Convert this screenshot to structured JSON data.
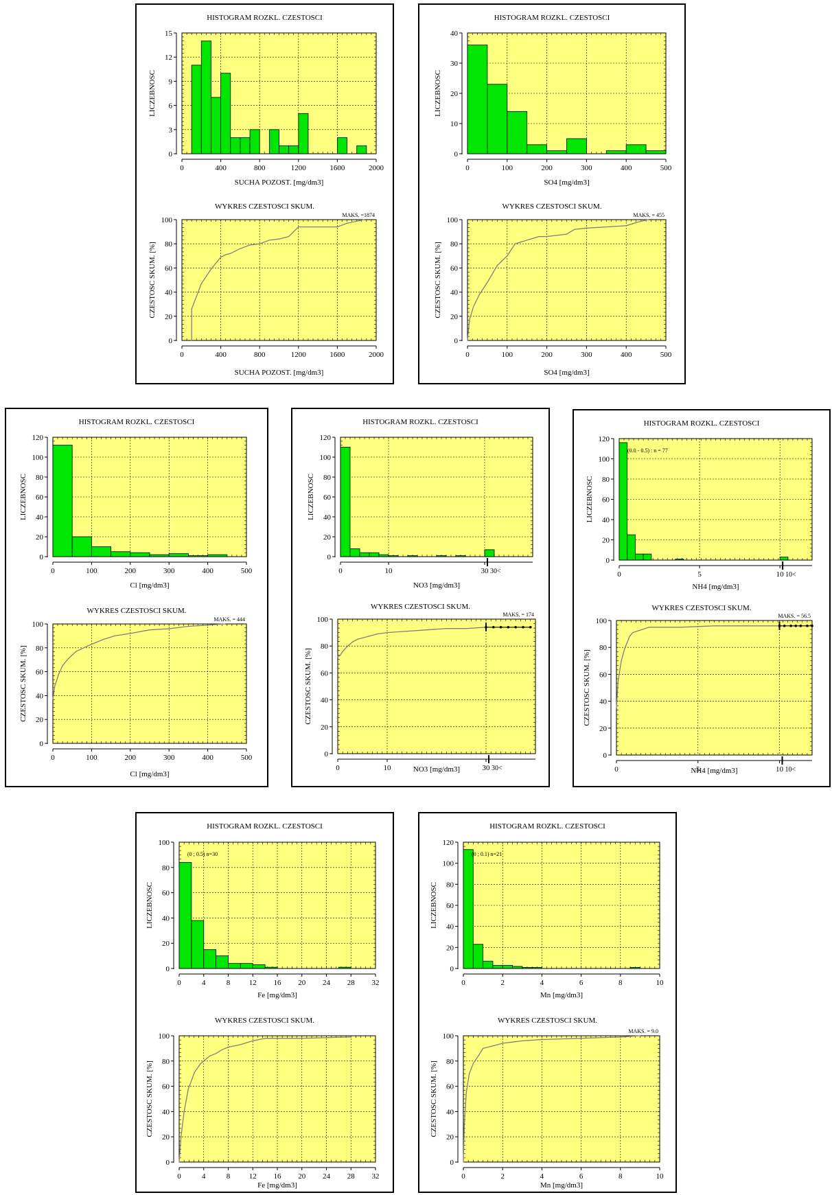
{
  "colors": {
    "plot_bg": "#ffff80",
    "bar_fill": "#00e600",
    "bar_stroke": "#000000",
    "grid": "#000000",
    "curve": "#7f7f7f"
  },
  "panels": [
    {
      "histogram": {
        "title": "HISTOGRAM ROZKL. CZESTOSCI",
        "ylabel": "LICZEBNOSC",
        "xlabel": "SUCHA POZOST.  [mg/dm3]"
      },
      "cumulative": {
        "title": "WYKRES CZESTOSCI SKUM.",
        "ylabel": "CZESTOSC SKUM.  [%]",
        "xlabel": "SUCHA POZOST.  [mg/dm3]",
        "maks": "MAKS. =1874"
      }
    },
    {
      "histogram": {
        "title": "HISTOGRAM ROZKL. CZESTOSCI",
        "ylabel": "LICZEBNOSC",
        "xlabel": "SO4  [mg/dm3]"
      },
      "cumulative": {
        "title": "WYKRES CZESTOSCI SKUM.",
        "ylabel": "CZESTOSC SKUM.  [%]",
        "xlabel": "SO4  [mg/dm3]",
        "maks": "MAKS. = 455"
      }
    },
    {
      "histogram": {
        "title": "HISTOGRAM ROZKL. CZESTOSCI",
        "ylabel": "LICZEBNOSC",
        "xlabel": "Cl  [mg/dm3]"
      },
      "cumulative": {
        "title": "WYKRES CZESTOSCI SKUM.",
        "ylabel": "CZESTOSC SKUM.  [%]",
        "xlabel": "Cl  [mg/dm3]",
        "maks": "MAKS. = 444"
      }
    },
    {
      "histogram": {
        "title": "HISTOGRAM ROZKL. CZESTOSCI",
        "ylabel": "LICZEBNOSC",
        "xlabel": "NO3  [mg/dm3]"
      },
      "cumulative": {
        "title": "WYKRES CZESTOSCI SKUM.",
        "ylabel": "CZESTOSC SKUM.  [%]",
        "xlabel": "NO3  [mg/dm3]",
        "maks": "MAKS. = 174"
      }
    },
    {
      "histogram": {
        "title": "HISTOGRAM ROZKL. CZESTOSCI",
        "ylabel": "LICZEBNOSC",
        "xlabel": "NH4  [mg/dm3]",
        "note": "(0.0 - 0.5) : n = 77"
      },
      "cumulative": {
        "title": "WYKRES CZESTOSCI SKUM.",
        "ylabel": "CZESTOSC SKUM.  [%]",
        "xlabel": "NH4  [mg/dm3]",
        "maks": "MAKS. = 56.5"
      }
    },
    {
      "histogram": {
        "title": "HISTOGRAM ROZKL. CZESTOSCI",
        "ylabel": "LICZEBNOSC",
        "xlabel": "Fe  [mg/dm3]",
        "note": "(0 ; 0.5)  n=30"
      },
      "cumulative": {
        "title": "WYKRES CZESTOSCI SKUM.",
        "ylabel": "CZESTOSC SKUM.  [%]",
        "xlabel": "Fe  [mg/dm3]"
      }
    },
    {
      "histogram": {
        "title": "HISTOGRAM ROZKL. CZESTOSCI",
        "ylabel": "LICZEBNOSC",
        "xlabel": "Mn  [mg/dm3]",
        "note": "(0 ; 0.1)  n=21"
      },
      "cumulative": {
        "title": "WYKRES CZESTOSCI SKUM.",
        "ylabel": "CZESTOSC SKUM.  [%]",
        "xlabel": "Mn  [mg/dm3]",
        "maks": "MAKS. = 9.0"
      }
    }
  ],
  "chart_data": [
    {
      "type": "bar",
      "title": "HISTOGRAM ROZKL. CZESTOSCI",
      "ylabel": "LICZEBNOSC",
      "xlabel": "SUCHA POZOST.  [mg/dm3]",
      "xlim": [
        0,
        2000
      ],
      "ylim": [
        0,
        15
      ],
      "xticks": [
        0,
        400,
        800,
        1200,
        1600,
        2000
      ],
      "yticks": [
        0,
        3,
        6,
        9,
        12,
        15
      ],
      "x_ticklabels": [
        "0",
        "400",
        "800",
        "1200",
        "1600",
        "2000"
      ],
      "y_ticklabels": [
        "0",
        "3",
        "6",
        "9",
        "12",
        "15"
      ],
      "bin_width": 100,
      "bin_starts": [
        100,
        200,
        300,
        400,
        500,
        600,
        700,
        800,
        900,
        1000,
        1100,
        1200,
        1300,
        1400,
        1500,
        1600,
        1700,
        1800
      ],
      "values": [
        11,
        14,
        7,
        10,
        2,
        2,
        3,
        0,
        3,
        1,
        1,
        5,
        0,
        0,
        0,
        2,
        0,
        1
      ]
    },
    {
      "type": "line",
      "title": "WYKRES CZESTOSCI SKUM.",
      "ylabel": "CZESTOSC SKUM.  [%]",
      "xlabel": "SUCHA POZOST.  [mg/dm3]",
      "xlim": [
        0,
        2000
      ],
      "ylim": [
        0,
        100
      ],
      "max_label": "MAKS. =1874",
      "xticks": [
        0,
        400,
        800,
        1200,
        1600,
        2000
      ],
      "yticks": [
        0,
        20,
        40,
        60,
        80,
        100
      ],
      "x_ticklabels": [
        "0",
        "400",
        "800",
        "1200",
        "1600",
        "2000"
      ],
      "y_ticklabels": [
        "0",
        "20",
        "40",
        "60",
        "80",
        "100"
      ],
      "x": [
        100,
        100,
        200,
        300,
        400,
        450,
        500,
        600,
        700,
        800,
        900,
        1000,
        1100,
        1200,
        1300,
        1600,
        1700,
        1874
      ],
      "y": [
        0,
        26,
        47,
        59,
        69,
        71,
        72,
        76,
        79,
        80,
        83,
        84,
        86,
        94,
        94,
        94,
        97,
        100
      ]
    },
    {
      "type": "bar",
      "title": "HISTOGRAM ROZKL. CZESTOSCI",
      "ylabel": "LICZEBNOSC",
      "xlabel": "SO4  [mg/dm3]",
      "xlim": [
        0,
        500
      ],
      "ylim": [
        0,
        40
      ],
      "xticks": [
        0,
        100,
        200,
        300,
        400,
        500
      ],
      "yticks": [
        0,
        10,
        20,
        30,
        40
      ],
      "x_ticklabels": [
        "0",
        "100",
        "200",
        "300",
        "400",
        "500"
      ],
      "y_ticklabels": [
        "0",
        "10",
        "20",
        "30",
        "40"
      ],
      "bin_width": 50,
      "bin_starts": [
        0,
        50,
        100,
        150,
        200,
        250,
        300,
        350,
        400,
        450
      ],
      "values": [
        36,
        23,
        14,
        3,
        1,
        5,
        0,
        1,
        3,
        1
      ]
    },
    {
      "type": "line",
      "title": "WYKRES CZESTOSCI SKUM.",
      "ylabel": "CZESTOSC SKUM.  [%]",
      "xlabel": "SO4  [mg/dm3]",
      "xlim": [
        0,
        500
      ],
      "ylim": [
        0,
        100
      ],
      "max_label": "MAKS. = 455",
      "xticks": [
        0,
        100,
        200,
        300,
        400,
        500
      ],
      "yticks": [
        0,
        20,
        40,
        60,
        80,
        100
      ],
      "x_ticklabels": [
        "0",
        "100",
        "200",
        "300",
        "400",
        "500"
      ],
      "y_ticklabels": [
        "0",
        "20",
        "40",
        "60",
        "80",
        "100"
      ],
      "x": [
        0,
        5,
        15,
        30,
        50,
        75,
        100,
        120,
        150,
        180,
        200,
        250,
        270,
        300,
        350,
        400,
        430,
        455
      ],
      "y": [
        0,
        17,
        28,
        38,
        48,
        62,
        70,
        80,
        83,
        86,
        86,
        88,
        92,
        93,
        94,
        95,
        98,
        100
      ]
    },
    {
      "type": "bar",
      "title": "HISTOGRAM ROZKL. CZESTOSCI",
      "ylabel": "LICZEBNOSC",
      "xlabel": "Cl  [mg/dm3]",
      "xlim": [
        0,
        500
      ],
      "ylim": [
        0,
        120
      ],
      "xticks": [
        0,
        100,
        200,
        300,
        400,
        500
      ],
      "yticks": [
        0,
        20,
        40,
        60,
        80,
        100,
        120
      ],
      "x_ticklabels": [
        "0",
        "100",
        "200",
        "300",
        "400",
        "500"
      ],
      "y_ticklabels": [
        "0",
        "20",
        "40",
        "60",
        "80",
        "100",
        "120"
      ],
      "bin_width": 50,
      "bin_starts": [
        0,
        50,
        100,
        150,
        200,
        250,
        300,
        350,
        400
      ],
      "values": [
        112,
        20,
        10,
        5,
        4,
        2,
        3,
        1,
        2
      ]
    },
    {
      "type": "line",
      "title": "WYKRES CZESTOSCI SKUM.",
      "ylabel": "CZESTOSC SKUM.  [%]",
      "xlabel": "Cl  [mg/dm3]",
      "xlim": [
        0,
        500
      ],
      "ylim": [
        0,
        100
      ],
      "max_label": "MAKS. = 444",
      "xticks": [
        0,
        100,
        200,
        300,
        400,
        500
      ],
      "yticks": [
        0,
        20,
        40,
        60,
        80,
        100
      ],
      "x_ticklabels": [
        "0",
        "100",
        "200",
        "300",
        "400",
        "500"
      ],
      "y_ticklabels": [
        "0",
        "20",
        "40",
        "60",
        "80",
        "100"
      ],
      "x": [
        0,
        5,
        15,
        25,
        40,
        60,
        80,
        100,
        130,
        160,
        200,
        250,
        300,
        350,
        400,
        444
      ],
      "y": [
        37,
        48,
        58,
        65,
        71,
        77,
        80,
        83,
        87,
        90,
        92,
        95,
        96,
        98,
        99,
        100
      ]
    },
    {
      "type": "bar",
      "title": "HISTOGRAM ROZKL. CZESTOSCI",
      "ylabel": "LICZEBNOSC",
      "xlabel": "NO3  [mg/dm3]",
      "xlim": [
        0,
        40
      ],
      "ylim": [
        0,
        120
      ],
      "xticks": [
        0,
        10,
        30
      ],
      "yticks": [
        0,
        20,
        40,
        60,
        80,
        100,
        120
      ],
      "x_ticklabels": [
        "0",
        "10",
        "30"
      ],
      "y_ticklabels": [
        "0",
        "20",
        "40",
        "60",
        "80",
        "100",
        "120"
      ],
      "overflow_label": "30<",
      "bin_width": 2,
      "bin_starts": [
        0,
        2,
        4,
        6,
        8,
        10,
        12,
        14,
        16,
        18,
        20,
        22,
        24,
        26,
        28,
        30
      ],
      "values": [
        110,
        8,
        4,
        4,
        2,
        1,
        0,
        1,
        0,
        0,
        1,
        0,
        1,
        0,
        0,
        7
      ]
    },
    {
      "type": "line",
      "title": "WYKRES CZESTOSCI SKUM.",
      "ylabel": "CZESTOSC SKUM.  [%]",
      "xlabel": "NO3  [mg/dm3]",
      "xlim": [
        0,
        40
      ],
      "ylim": [
        0,
        100
      ],
      "max_label": "MAKS. = 174",
      "xticks": [
        0,
        10,
        30
      ],
      "yticks": [
        0,
        20,
        40,
        60,
        80,
        100
      ],
      "x_ticklabels": [
        "0",
        "10",
        "30"
      ],
      "y_ticklabels": [
        "0",
        "20",
        "40",
        "60",
        "80",
        "100"
      ],
      "overflow_label": "30<",
      "x": [
        0,
        0.5,
        1,
        2,
        3,
        4,
        6,
        8,
        10,
        14,
        18,
        22,
        26,
        30
      ],
      "y": [
        72,
        73,
        76,
        80,
        83,
        85,
        87,
        89,
        90,
        91,
        92,
        93,
        93,
        94
      ],
      "overflow_x": [
        30,
        31.5,
        33,
        34.5,
        36,
        37.5,
        39
      ],
      "overflow_y": [
        94,
        94,
        94,
        94,
        94,
        94,
        94
      ]
    },
    {
      "type": "bar",
      "title": "HISTOGRAM ROZKL. CZESTOSCI",
      "ylabel": "LICZEBNOSC",
      "xlabel": "NH4  [mg/dm3]",
      "xlim": [
        0,
        12
      ],
      "ylim": [
        0,
        120
      ],
      "xticks": [
        0,
        5,
        10
      ],
      "yticks": [
        0,
        20,
        40,
        60,
        80,
        100,
        120
      ],
      "x_ticklabels": [
        "0",
        "5",
        "10"
      ],
      "y_ticklabels": [
        "0",
        "20",
        "40",
        "60",
        "80",
        "100",
        "120"
      ],
      "overflow_label": "10<",
      "bin_width": 0.5,
      "bin_starts": [
        0,
        0.5,
        1.0,
        1.5,
        2.0,
        2.5,
        3.0,
        3.5,
        10.0
      ],
      "values": [
        116,
        25,
        6,
        6,
        0,
        0,
        0,
        1,
        3
      ]
    },
    {
      "type": "line",
      "title": "WYKRES CZESTOSCI SKUM.",
      "ylabel": "CZESTOSC SKUM.  [%]",
      "xlabel": "NH4  [mg/dm3]",
      "xlim": [
        0,
        12
      ],
      "ylim": [
        0,
        100
      ],
      "max_label": "MAKS. = 56.5",
      "xticks": [
        0,
        5,
        10
      ],
      "yticks": [
        0,
        20,
        40,
        60,
        80,
        100
      ],
      "x_ticklabels": [
        "0",
        "5",
        "10"
      ],
      "y_ticklabels": [
        "0",
        "20",
        "40",
        "60",
        "80",
        "100"
      ],
      "overflow_label": "10<",
      "x": [
        0,
        0.1,
        0.3,
        0.5,
        0.8,
        1.0,
        1.5,
        2.0,
        4.0,
        6.0,
        8.0,
        10.0
      ],
      "y": [
        35,
        55,
        70,
        79,
        88,
        91,
        93,
        95,
        95,
        96,
        96,
        96
      ],
      "overflow_x": [
        10,
        10.3,
        10.7,
        11.0,
        11.3,
        11.7,
        12.0
      ],
      "overflow_y": [
        96,
        96,
        96,
        96,
        96,
        96,
        96
      ]
    },
    {
      "type": "bar",
      "title": "HISTOGRAM ROZKL. CZESTOSCI",
      "ylabel": "LICZEBNOSC",
      "xlabel": "Fe  [mg/dm3]",
      "xlim": [
        0,
        32
      ],
      "ylim": [
        0,
        100
      ],
      "xticks": [
        0,
        4,
        8,
        12,
        16,
        20,
        24,
        28,
        32
      ],
      "yticks": [
        0,
        20,
        40,
        60,
        80,
        100
      ],
      "x_ticklabels": [
        "0",
        "4",
        "8",
        "12",
        "16",
        "20",
        "24",
        "28",
        "32"
      ],
      "y_ticklabels": [
        "0",
        "20",
        "40",
        "60",
        "80",
        "100"
      ],
      "bin_width": 2,
      "bin_starts": [
        0,
        2,
        4,
        6,
        8,
        10,
        12,
        14,
        16,
        18,
        20,
        22,
        24,
        26,
        28,
        30
      ],
      "values": [
        84,
        38,
        15,
        10,
        4,
        4,
        3,
        1,
        0,
        0,
        0,
        0,
        0,
        1,
        0,
        0
      ]
    },
    {
      "type": "line",
      "title": "WYKRES CZESTOSCI SKUM.",
      "ylabel": "CZESTOSC SKUM.  [%]",
      "xlabel": "Fe  [mg/dm3]",
      "xlim": [
        0,
        32
      ],
      "ylim": [
        0,
        100
      ],
      "xticks": [
        0,
        4,
        8,
        12,
        16,
        20,
        24,
        28,
        32
      ],
      "yticks": [
        0,
        20,
        40,
        60,
        80,
        100
      ],
      "x_ticklabels": [
        "0",
        "4",
        "8",
        "12",
        "16",
        "20",
        "24",
        "28",
        "32"
      ],
      "y_ticklabels": [
        "0",
        "20",
        "40",
        "60",
        "80",
        "100"
      ],
      "x": [
        0,
        0.3,
        0.8,
        1.5,
        2.5,
        3.5,
        5,
        6,
        7,
        8,
        9,
        10,
        12,
        14,
        20,
        28
      ],
      "y": [
        0,
        20,
        40,
        58,
        71,
        78,
        84,
        86,
        89,
        91,
        92,
        93,
        96,
        98,
        98,
        99
      ]
    },
    {
      "type": "bar",
      "title": "HISTOGRAM ROZKL. CZESTOSCI",
      "ylabel": "LICZEBNOSC",
      "xlabel": "Mn  [mg/dm3]",
      "xlim": [
        0,
        10
      ],
      "ylim": [
        0,
        120
      ],
      "xticks": [
        0,
        2,
        4,
        6,
        8,
        10
      ],
      "yticks": [
        0,
        20,
        40,
        60,
        80,
        100,
        120
      ],
      "x_ticklabels": [
        "0",
        "2",
        "4",
        "6",
        "8",
        "10"
      ],
      "y_ticklabels": [
        "0",
        "20",
        "40",
        "60",
        "80",
        "100",
        "120"
      ],
      "bin_width": 0.5,
      "bin_starts": [
        0,
        0.5,
        1.0,
        1.5,
        2.0,
        2.5,
        3.0,
        3.5,
        4.0,
        8.5
      ],
      "values": [
        113,
        23,
        7,
        3,
        3,
        2,
        1,
        1,
        0,
        1
      ]
    },
    {
      "type": "line",
      "title": "WYKRES CZESTOSCI SKUM.",
      "ylabel": "CZESTOSC SKUM.  [%]",
      "xlabel": "Mn  [mg/dm3]",
      "xlim": [
        0,
        10
      ],
      "ylim": [
        0,
        100
      ],
      "max_label": "MAKS. = 9.0",
      "xticks": [
        0,
        2,
        4,
        6,
        8,
        10
      ],
      "yticks": [
        0,
        20,
        40,
        60,
        80,
        100
      ],
      "x_ticklabels": [
        "0",
        "2",
        "4",
        "6",
        "8",
        "10"
      ],
      "y_ticklabels": [
        "0",
        "20",
        "40",
        "60",
        "80",
        "100"
      ],
      "x": [
        0,
        0.05,
        0.15,
        0.3,
        0.5,
        0.8,
        1.0,
        1.5,
        2.0,
        2.5,
        3.0,
        4.0,
        6.0,
        8.0,
        9.0
      ],
      "y": [
        0,
        30,
        55,
        70,
        78,
        85,
        90,
        92,
        94,
        95,
        96,
        97,
        98,
        99,
        100
      ]
    }
  ]
}
